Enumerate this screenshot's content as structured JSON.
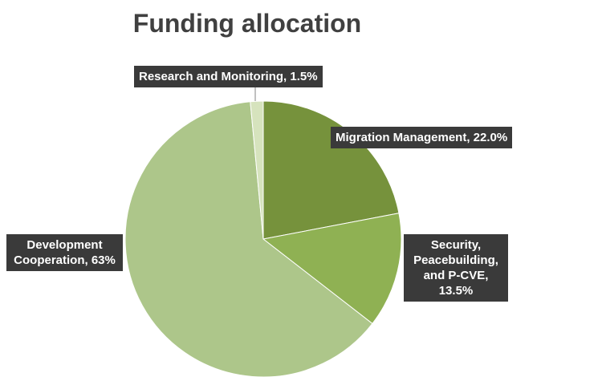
{
  "chart_data": {
    "type": "pie",
    "title": "Funding allocation",
    "values": [
      22.0,
      13.5,
      63,
      1.5
    ],
    "value_labels": [
      "Migration Management, 22.0%",
      "Security, Peacebuilding, and P-CVE, 13.5%",
      "Development Cooperation, 63%",
      "Research and Monitoring, 1.5%"
    ],
    "colors": [
      "#76923c",
      "#8fb153",
      "#adc68a",
      "#d6e3bd"
    ]
  }
}
